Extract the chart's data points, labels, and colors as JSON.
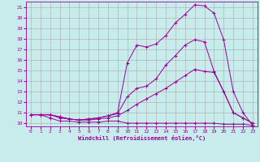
{
  "xlabel": "Windchill (Refroidissement éolien,°C)",
  "bg_color": "#c8ecec",
  "line_color": "#990099",
  "grid_color": "#aaaaaa",
  "xlim": [
    -0.5,
    23.5
  ],
  "ylim": [
    9.7,
    21.5
  ],
  "xticks": [
    0,
    1,
    2,
    3,
    4,
    5,
    6,
    7,
    8,
    9,
    10,
    11,
    12,
    13,
    14,
    15,
    16,
    17,
    18,
    19,
    20,
    21,
    22,
    23
  ],
  "yticks": [
    10,
    11,
    12,
    13,
    14,
    15,
    16,
    17,
    18,
    19,
    20,
    21
  ],
  "series": [
    {
      "x": [
        0,
        1,
        2,
        3,
        4,
        5,
        6,
        7,
        8,
        9,
        10,
        11,
        12,
        13,
        14,
        15,
        16,
        17,
        18,
        19,
        20,
        21,
        22,
        23
      ],
      "y": [
        10.8,
        10.8,
        10.5,
        10.2,
        10.2,
        10.1,
        10.1,
        10.1,
        10.2,
        10.2,
        10.0,
        10.0,
        10.0,
        10.0,
        10.0,
        10.0,
        10.0,
        10.0,
        10.0,
        10.0,
        9.9,
        9.9,
        9.9,
        9.8
      ]
    },
    {
      "x": [
        0,
        1,
        2,
        3,
        4,
        5,
        6,
        7,
        8,
        9,
        10,
        11,
        12,
        13,
        14,
        15,
        16,
        17,
        18,
        19,
        20,
        21,
        22,
        23
      ],
      "y": [
        10.8,
        10.8,
        10.8,
        10.5,
        10.4,
        10.3,
        10.3,
        10.4,
        10.5,
        10.7,
        11.2,
        11.8,
        12.3,
        12.8,
        13.3,
        13.9,
        14.5,
        15.1,
        14.9,
        14.8,
        13.0,
        11.0,
        10.5,
        10.0
      ]
    },
    {
      "x": [
        0,
        1,
        2,
        3,
        4,
        5,
        6,
        7,
        8,
        9,
        10,
        11,
        12,
        13,
        14,
        15,
        16,
        17,
        18,
        19,
        20,
        21,
        22,
        23
      ],
      "y": [
        10.8,
        10.8,
        10.8,
        10.6,
        10.4,
        10.3,
        10.4,
        10.5,
        10.7,
        10.9,
        12.5,
        13.3,
        13.5,
        14.2,
        15.5,
        16.4,
        17.4,
        17.9,
        17.7,
        14.9,
        13.0,
        11.0,
        10.5,
        10.0
      ]
    },
    {
      "x": [
        0,
        1,
        2,
        3,
        4,
        5,
        6,
        7,
        8,
        9,
        10,
        11,
        12,
        13,
        14,
        15,
        16,
        17,
        18,
        19,
        20,
        21,
        22,
        23
      ],
      "y": [
        10.8,
        10.8,
        10.8,
        10.6,
        10.4,
        10.3,
        10.4,
        10.5,
        10.7,
        11.0,
        15.7,
        17.4,
        17.2,
        17.5,
        18.3,
        19.5,
        20.3,
        21.2,
        21.1,
        20.4,
        17.9,
        13.0,
        11.0,
        9.8
      ]
    }
  ]
}
